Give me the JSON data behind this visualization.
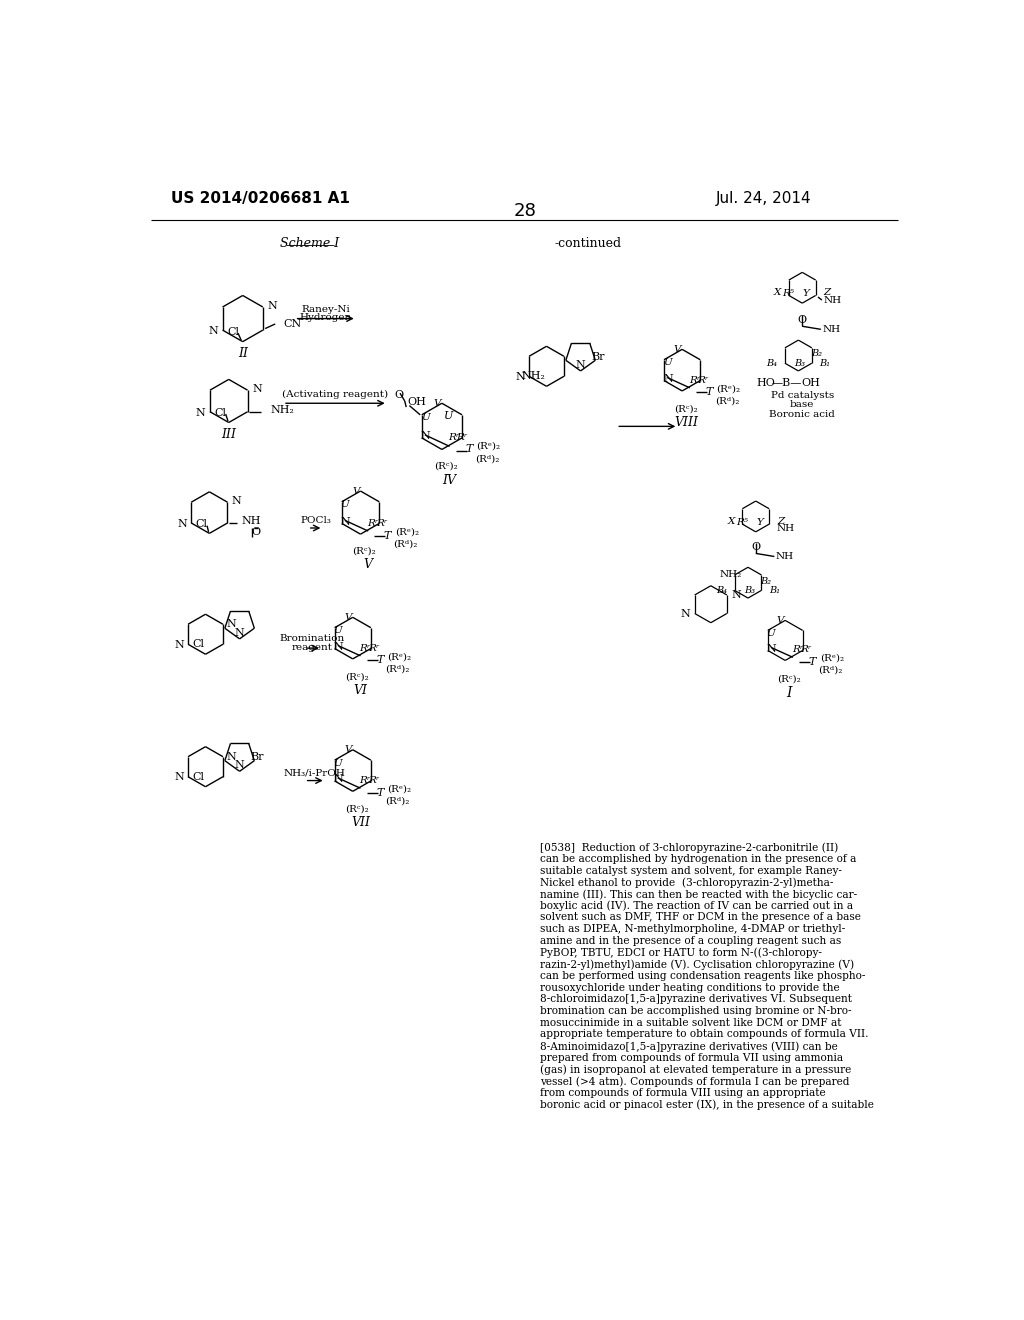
{
  "page_number": "28",
  "patent_number": "US 2014/0206681 A1",
  "patent_date": "Jul. 24, 2014",
  "scheme_label": "Scheme I",
  "continued_label": "-continued",
  "background_color": "#ffffff",
  "text_color": "#000000",
  "paragraph_text": [
    "[0538]  Reduction of 3-chloropyrazine-2-carbonitrile (II)",
    "can be accomplished by hydrogenation in the presence of a",
    "suitable catalyst system and solvent, for example Raney-",
    "Nickel ethanol to provide  (3-chloropyrazin-2-yl)metha-",
    "namine (III). This can then be reacted with the bicyclic car-",
    "boxylic acid (IV). The reaction of IV can be carried out in a",
    "solvent such as DMF, THF or DCM in the presence of a base",
    "such as DIPEA, N-methylmorpholine, 4-DMAP or triethyl-",
    "amine and in the presence of a coupling reagent such as",
    "PyBOP, TBTU, EDCI or HATU to form N-((3-chloropy-",
    "razin-2-yl)methyl)amide (V). Cyclisation chloropyrazine (V)",
    "can be performed using condensation reagents like phospho-",
    "rousoxychloride under heating conditions to provide the",
    "8-chloroimidazo[1,5-a]pyrazine derivatives VI. Subsequent",
    "bromination can be accomplished using bromine or N-bro-",
    "mosuccinimide in a suitable solvent like DCM or DMF at",
    "appropriate temperature to obtain compounds of formula VII.",
    "8-Aminoimidazo[1,5-a]pyrazine derivatives (VIII) can be",
    "prepared from compounds of formula VII using ammonia",
    "(gas) in isopropanol at elevated temperature in a pressure",
    "vessel (>4 atm). Compounds of formula I can be prepared",
    "from compounds of formula VIII using an appropriate",
    "boronic acid or pinacol ester (IX), in the presence of a suitable"
  ]
}
